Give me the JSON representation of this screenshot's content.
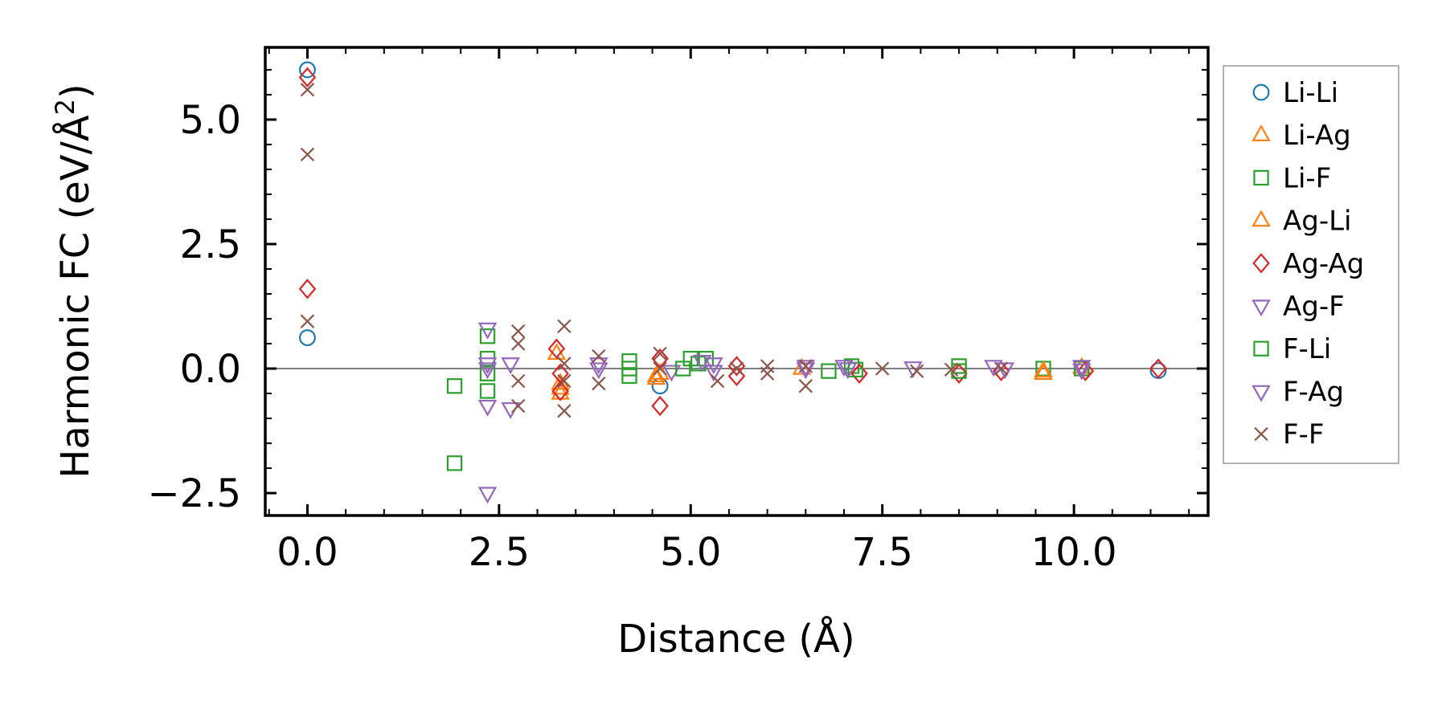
{
  "chart_data": {
    "type": "scatter",
    "xlabel": "Distance (Å)",
    "ylabel_main": "Harmonic FC (eV/Å",
    "ylabel_sup": "2",
    "ylabel_close": ")",
    "xlim": [
      -0.55,
      11.75
    ],
    "ylim": [
      -2.95,
      6.45
    ],
    "x_ticks": [
      0.0,
      2.5,
      5.0,
      7.5,
      10.0
    ],
    "x_tick_labels": [
      "0.0",
      "2.5",
      "5.0",
      "7.5",
      "10.0"
    ],
    "y_ticks": [
      -2.5,
      0.0,
      2.5,
      5.0
    ],
    "y_tick_labels": [
      "−2.5",
      "0.0",
      "2.5",
      "5.0"
    ],
    "zero_line": true,
    "grid": false,
    "legend_position": "outside-right",
    "series": [
      {
        "name": "Li-Li",
        "marker": "circle",
        "color": "#1f77b4",
        "points": [
          [
            0,
            6.0
          ],
          [
            0,
            0.62
          ],
          [
            4.6,
            -0.35
          ],
          [
            11.1,
            -0.04
          ]
        ]
      },
      {
        "name": "Li-Ag",
        "marker": "triangle-up",
        "color": "#ff7f0e",
        "points": [
          [
            3.3,
            -0.5
          ],
          [
            3.3,
            -0.3
          ],
          [
            4.55,
            -0.2
          ],
          [
            4.6,
            -0.1
          ],
          [
            6.45,
            0.0
          ],
          [
            9.6,
            -0.1
          ],
          [
            10.1,
            0.02
          ]
        ]
      },
      {
        "name": "Li-F",
        "marker": "square",
        "color": "#2ca02c",
        "points": [
          [
            1.92,
            -0.35
          ],
          [
            1.92,
            -1.9
          ],
          [
            2.35,
            0.65
          ],
          [
            2.35,
            0.2
          ],
          [
            2.35,
            -0.1
          ],
          [
            2.35,
            -0.45
          ],
          [
            4.2,
            0.15
          ],
          [
            4.2,
            0.0
          ],
          [
            4.2,
            -0.15
          ],
          [
            5.0,
            0.2
          ],
          [
            5.2,
            0.2
          ],
          [
            6.8,
            -0.05
          ],
          [
            7.1,
            0.05
          ],
          [
            8.5,
            0.05
          ],
          [
            9.6,
            0.0
          ],
          [
            10.1,
            0.0
          ]
        ]
      },
      {
        "name": "Ag-Li",
        "marker": "triangle-up",
        "color": "#ff7f0e",
        "points": [
          [
            3.25,
            0.3
          ],
          [
            3.3,
            -0.4
          ],
          [
            4.55,
            -0.15
          ],
          [
            9.6,
            -0.05
          ]
        ]
      },
      {
        "name": "Ag-Ag",
        "marker": "diamond",
        "color": "#d62728",
        "points": [
          [
            0,
            5.85
          ],
          [
            0,
            1.6
          ],
          [
            3.25,
            0.4
          ],
          [
            3.3,
            -0.1
          ],
          [
            3.3,
            -0.45
          ],
          [
            4.6,
            -0.75
          ],
          [
            4.6,
            0.2
          ],
          [
            5.6,
            0.05
          ],
          [
            5.6,
            -0.15
          ],
          [
            7.2,
            -0.1
          ],
          [
            8.5,
            -0.1
          ],
          [
            9.05,
            -0.05
          ],
          [
            10.15,
            -0.05
          ],
          [
            11.1,
            0.0
          ]
        ]
      },
      {
        "name": "Ag-F",
        "marker": "triangle-down",
        "color": "#9467bd",
        "points": [
          [
            2.35,
            0.8
          ],
          [
            2.35,
            0.0
          ],
          [
            2.35,
            -0.75
          ],
          [
            2.35,
            -2.5
          ],
          [
            2.65,
            0.1
          ],
          [
            2.65,
            -0.8
          ],
          [
            3.8,
            0.1
          ],
          [
            4.75,
            -0.05
          ],
          [
            5.3,
            0.1
          ],
          [
            6.5,
            0.05
          ],
          [
            7.0,
            0.05
          ],
          [
            7.9,
            0.02
          ],
          [
            9.1,
            0.0
          ],
          [
            10.1,
            0.05
          ]
        ]
      },
      {
        "name": "F-Li",
        "marker": "square",
        "color": "#2ca02c",
        "points": [
          [
            4.9,
            0.0
          ],
          [
            5.1,
            0.1
          ],
          [
            7.15,
            -0.02
          ],
          [
            8.5,
            -0.05
          ]
        ]
      },
      {
        "name": "F-Ag",
        "marker": "triangle-down",
        "color": "#9467bd",
        "points": [
          [
            2.35,
            0.1
          ],
          [
            3.8,
            0.0
          ],
          [
            5.15,
            0.15
          ],
          [
            5.3,
            -0.05
          ],
          [
            6.5,
            0.0
          ],
          [
            7.05,
            0.0
          ],
          [
            8.95,
            0.05
          ],
          [
            10.1,
            -0.02
          ]
        ]
      },
      {
        "name": "F-F",
        "marker": "x",
        "color": "#8c564b",
        "points": [
          [
            0,
            5.6
          ],
          [
            0,
            4.3
          ],
          [
            0,
            0.95
          ],
          [
            2.75,
            0.75
          ],
          [
            2.75,
            0.5
          ],
          [
            2.75,
            -0.25
          ],
          [
            2.75,
            -0.75
          ],
          [
            3.35,
            0.85
          ],
          [
            3.35,
            0.1
          ],
          [
            3.35,
            -0.25
          ],
          [
            3.35,
            -0.85
          ],
          [
            3.8,
            0.25
          ],
          [
            3.8,
            -0.3
          ],
          [
            4.6,
            0.3
          ],
          [
            4.6,
            0.0
          ],
          [
            5.35,
            -0.25
          ],
          [
            5.6,
            0.0
          ],
          [
            6.0,
            0.05
          ],
          [
            6.0,
            -0.1
          ],
          [
            6.5,
            -0.35
          ],
          [
            6.5,
            0.05
          ],
          [
            7.5,
            0.0
          ],
          [
            7.95,
            -0.05
          ],
          [
            8.4,
            -0.02
          ],
          [
            9.05,
            0.0
          ]
        ]
      }
    ]
  }
}
